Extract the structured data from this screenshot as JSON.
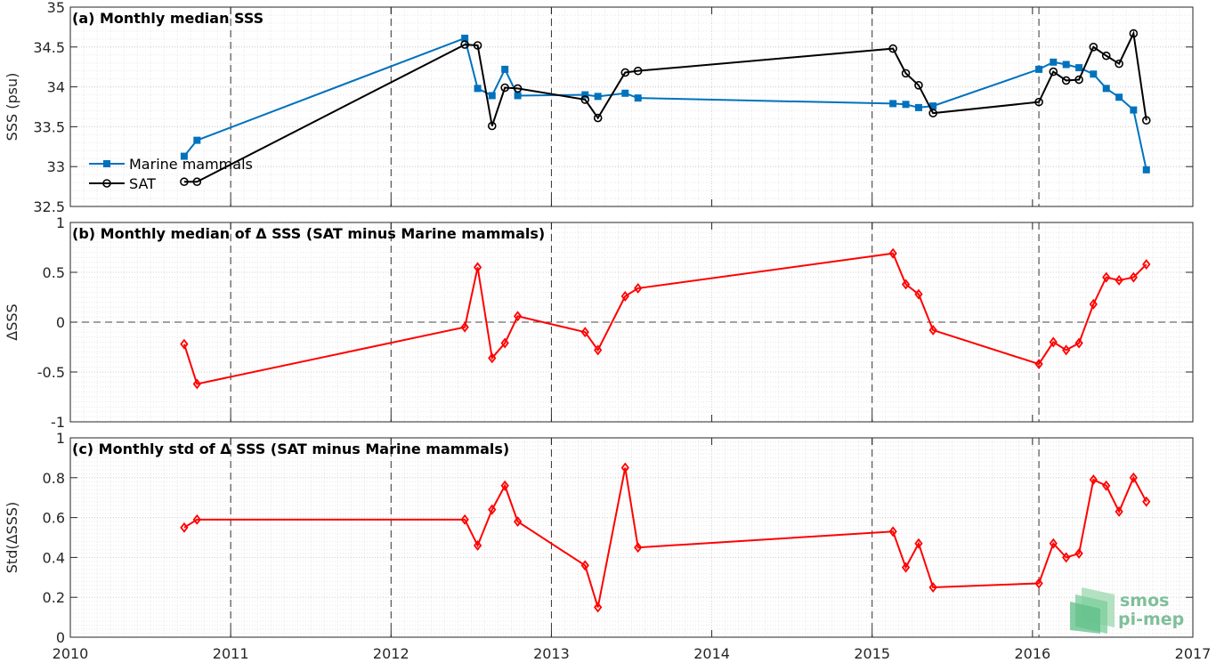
{
  "chart_data": [
    {
      "type": "line",
      "title": "(a) Monthly median SSS",
      "ylabel": "SSS (psu)",
      "xlim": [
        2010,
        2017
      ],
      "ylim": [
        32.5,
        35
      ],
      "yticks": [
        "32.5",
        "33",
        "33.5",
        "34",
        "34.5",
        "35"
      ],
      "legend_position": "bottom-left",
      "series": [
        {
          "name": "Marine mammals",
          "color": "#0072bd",
          "marker": "square",
          "x": [
            2010.71,
            2010.79,
            2012.46,
            2012.54,
            2012.63,
            2012.71,
            2012.79,
            2013.21,
            2013.29,
            2013.46,
            2013.54,
            2015.13,
            2015.21,
            2015.29,
            2015.38,
            2016.04,
            2016.13,
            2016.21,
            2016.29,
            2016.38,
            2016.46,
            2016.54,
            2016.63,
            2016.71
          ],
          "y": [
            33.13,
            33.33,
            34.61,
            33.98,
            33.89,
            34.22,
            33.89,
            33.9,
            33.88,
            33.92,
            33.86,
            33.79,
            33.78,
            33.74,
            33.76,
            34.22,
            34.31,
            34.28,
            34.24,
            34.16,
            33.98,
            33.87,
            33.71,
            32.96
          ]
        },
        {
          "name": "SAT",
          "color": "#000000",
          "marker": "circle",
          "x": [
            2010.71,
            2010.79,
            2012.46,
            2012.54,
            2012.63,
            2012.71,
            2012.79,
            2013.21,
            2013.29,
            2013.46,
            2013.54,
            2015.13,
            2015.21,
            2015.29,
            2015.38,
            2016.04,
            2016.13,
            2016.21,
            2016.29,
            2016.38,
            2016.46,
            2016.54,
            2016.63,
            2016.71
          ],
          "y": [
            32.81,
            32.81,
            34.53,
            34.52,
            33.51,
            33.99,
            33.98,
            33.84,
            33.61,
            34.18,
            34.2,
            34.48,
            34.17,
            34.02,
            33.67,
            33.81,
            34.19,
            34.08,
            34.09,
            34.5,
            34.39,
            34.29,
            34.67,
            33.58
          ]
        }
      ]
    },
    {
      "type": "line",
      "title": "(b) Monthly median of Δ SSS (SAT minus Marine mammals)",
      "ylabel": "ΔSSS",
      "xlim": [
        2010,
        2017
      ],
      "ylim": [
        -1,
        1
      ],
      "yticks": [
        "-1",
        "-0.5",
        "0",
        "0.5",
        "1"
      ],
      "zero_line": true,
      "series": [
        {
          "color": "#ff0000",
          "marker": "diamond",
          "x": [
            2010.71,
            2010.79,
            2012.46,
            2012.54,
            2012.63,
            2012.71,
            2012.79,
            2013.21,
            2013.29,
            2013.46,
            2013.54,
            2015.13,
            2015.21,
            2015.29,
            2015.38,
            2016.04,
            2016.13,
            2016.21,
            2016.29,
            2016.38,
            2016.46,
            2016.54,
            2016.63,
            2016.71
          ],
          "y": [
            -0.22,
            -0.62,
            -0.05,
            0.55,
            -0.36,
            -0.21,
            0.06,
            -0.1,
            -0.28,
            0.26,
            0.34,
            0.69,
            0.38,
            0.28,
            -0.08,
            -0.42,
            -0.2,
            -0.28,
            -0.21,
            0.18,
            0.45,
            0.42,
            0.45,
            0.58
          ]
        }
      ]
    },
    {
      "type": "line",
      "title": "(c) Monthly std of Δ SSS (SAT minus Marine mammals)",
      "ylabel": "Std(ΔSSS)",
      "xlabel": "",
      "xlim": [
        2010,
        2017
      ],
      "ylim": [
        0,
        1
      ],
      "yticks": [
        "0",
        "0.2",
        "0.4",
        "0.6",
        "0.8",
        "1"
      ],
      "xticks": [
        "2010",
        "2011",
        "2012",
        "2013",
        "2014",
        "2015",
        "2016",
        "2017"
      ],
      "series": [
        {
          "color": "#ff0000",
          "marker": "diamond",
          "x": [
            2010.71,
            2010.79,
            2012.46,
            2012.54,
            2012.63,
            2012.71,
            2012.79,
            2013.21,
            2013.29,
            2013.46,
            2013.54,
            2015.13,
            2015.21,
            2015.29,
            2015.38,
            2016.04,
            2016.13,
            2016.21,
            2016.29,
            2016.38,
            2016.46,
            2016.54,
            2016.63,
            2016.71
          ],
          "y": [
            0.55,
            0.59,
            0.59,
            0.46,
            0.64,
            0.76,
            0.58,
            0.36,
            0.15,
            0.85,
            0.45,
            0.53,
            0.35,
            0.47,
            0.25,
            0.27,
            0.47,
            0.4,
            0.42,
            0.79,
            0.76,
            0.63,
            0.8,
            0.68
          ]
        }
      ]
    }
  ],
  "year_dividers": [
    2011,
    2012,
    2013,
    2015,
    2016.04
  ],
  "logo": {
    "line1": "smos",
    "line2": "pi-mep",
    "color": "#7fbf9a"
  }
}
